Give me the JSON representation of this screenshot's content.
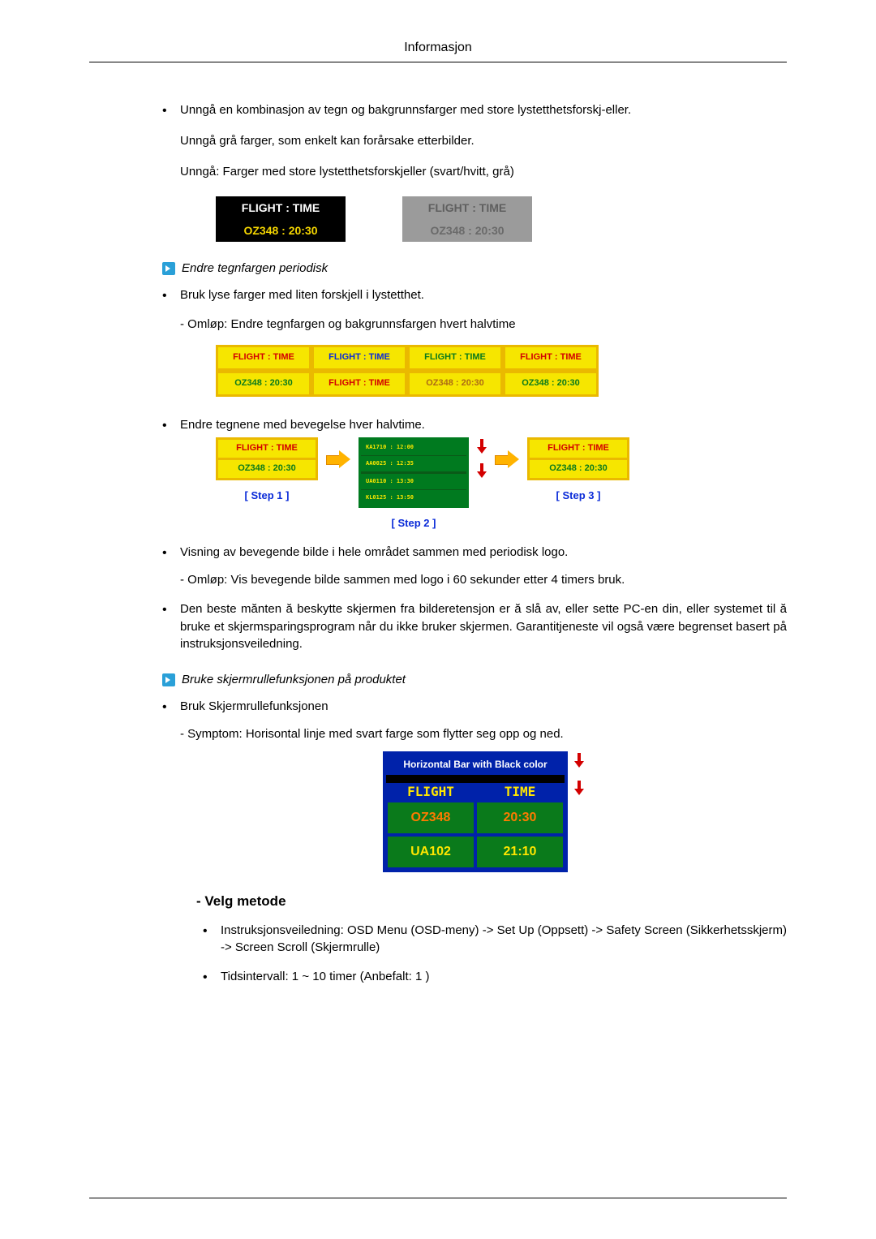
{
  "header_title": "Informasjon",
  "bullet1_a": "Unngå en kombinasjon av tegn og bakgrunnsfarger med store lystetthetsforskj-eller.",
  "bullet1_b": "Unngå grå farger, som enkelt kan forårsake etterbilder.",
  "bullet1_c": "Unngå: Farger med store lystetthetsforskjeller (svart/hvitt, grå)",
  "fig1": {
    "left_bg": "#000000",
    "right_bg": "#9b9b9b",
    "title_text": "FLIGHT  :  TIME",
    "sub_text": "OZ348    :   20:30",
    "left_title_color": "#ffffff",
    "left_sub_color": "#f4d500",
    "right_title_color": "#5f5f5f",
    "right_sub_color": "#6a6a6a"
  },
  "section_a_title": "Endre tegnfargen periodisk",
  "bullet2_a": "Bruk lyse farger med liten forskjell i lystetthet.",
  "bullet2_b": "- Omløp: Endre tegnfargen og bakgrunnsfargen hvert halvtime",
  "fig2": {
    "border": "#eab900",
    "bg": "#f6e600",
    "ft_label": "FLIGHT  :  TIME",
    "oz_label": "OZ348    :   20:30",
    "c1_top": "#d30000",
    "c1_bot": "#0a7a1b",
    "c2_top": "#0a2bd8",
    "c2_bot": "#d30000",
    "c3_top": "#0a7a1b",
    "c3_bot": "#ac6a15",
    "c4_top": "#d30000",
    "c4_bot": "#0a7a1b"
  },
  "bullet3": "Endre tegnene med bevegelse hver halvtime.",
  "fig3": {
    "border": "#eab900",
    "bg": "#f6e600",
    "red": "#d30000",
    "green": "#0a7a1b",
    "ft_label": "FLIGHT  :  TIME",
    "oz_label": "OZ348    :  20:30",
    "green_a1": "KA1710  :  12:00",
    "green_a2": "AA0025  :  12:35",
    "green_b1": "UA0110  :  13:30",
    "green_b2": "KL0125  :  13:50",
    "step1": "[ Step 1 ]",
    "step2": "[ Step 2 ]",
    "step3": "[ Step 3 ]"
  },
  "bullet4_a": "Visning av bevegende bilde i hele området sammen med periodisk logo.",
  "bullet4_b": "- Omløp: Vis bevegende bilde sammen med logo i 60 sekunder etter 4 timers bruk.",
  "bullet5": "Den beste mănten ă beskytte skjermen fra bilderetensjon er ă slå av, eller sette PC-en din, eller systemet til ă bruke et skjermsparingsprogram når du ikke bruker skjermen. Garantitjeneste vil også være begrenset basert på instruksjonsveiledning.",
  "section_b_title": "Bruke skjermrullefunksjonen på produktet",
  "bullet6": "Bruk Skjermrullefunksjonen",
  "bullet6_sub": "- Symptom: Horisontal linje med svart farge som flytter seg opp og ned.",
  "fig4": {
    "caption": "Horizontal Bar with Black color",
    "h1": "FLIGHT",
    "h2": "TIME",
    "r1c1": "OZ348",
    "r1c2": "20:30",
    "r2c1": "UA102",
    "r2c2": "21:10",
    "cell_bg": "#0a7a1b",
    "r1_color": "#ff7a00",
    "r2_color": "#ffe600",
    "frame": "#0022aa"
  },
  "method_heading": "- Velg metode",
  "method_b1": "Instruksjonsveiledning: OSD Menu (OSD-meny) -> Set Up (Oppsett) -> Safety Screen (Sikkerhetsskjerm) -> Screen Scroll (Skjermrulle)",
  "method_b2": "Tidsintervall: 1 ~ 10 timer (Anbefalt: 1 )"
}
